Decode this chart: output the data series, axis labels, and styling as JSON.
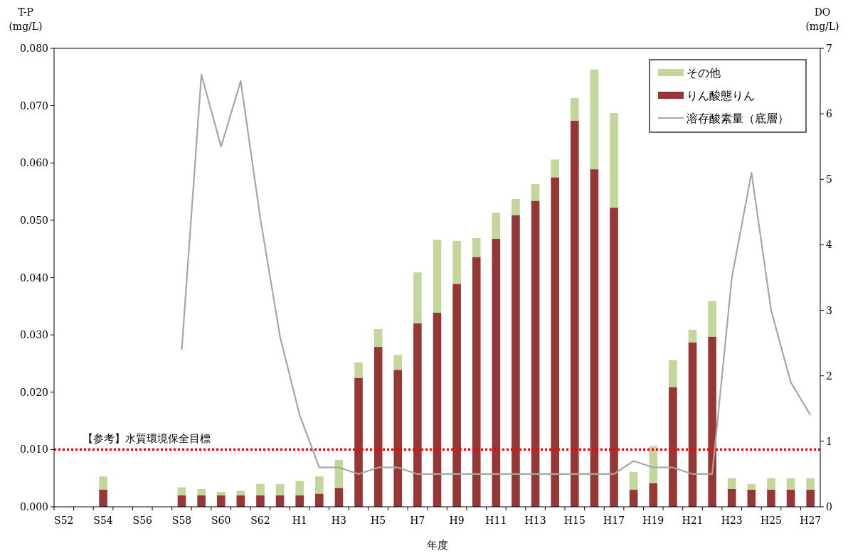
{
  "chart_data": {
    "type": "bar",
    "stacked": true,
    "xlabel": "年度",
    "ylabel": "T-P (mg/L)",
    "y2label": "DO (mg/L)",
    "categories": [
      "S52",
      null,
      "S54",
      null,
      "S56",
      null,
      "S58",
      null,
      "S60",
      null,
      "S62",
      null,
      "H1",
      null,
      "H3",
      null,
      "H5",
      null,
      "H7",
      null,
      "H9",
      null,
      "H11",
      null,
      "H13",
      null,
      "H15",
      null,
      "H17",
      null,
      "H19",
      null,
      "H21",
      null,
      "H23",
      null,
      "H25",
      null,
      "H27"
    ],
    "series": [
      {
        "name": "りん酸態りん",
        "color": "#953735",
        "values": [
          null,
          null,
          0.003,
          null,
          null,
          null,
          0.002,
          0.002,
          0.002,
          0.002,
          0.002,
          0.002,
          0.002,
          0.0023,
          0.0033,
          0.0225,
          0.0279,
          0.0239,
          0.032,
          0.0339,
          0.0389,
          0.0436,
          0.0468,
          0.0509,
          0.0534,
          0.0575,
          0.0674,
          0.0589,
          0.0522,
          0.003,
          0.0041,
          0.0209,
          0.0287,
          0.0297,
          0.0031,
          0.003,
          0.003,
          0.003,
          0.003
        ]
      },
      {
        "name": "その他",
        "color": "#c3d69b",
        "values": [
          null,
          null,
          0.0023,
          null,
          null,
          null,
          0.0014,
          0.0011,
          0.0006,
          0.0008,
          0.002,
          0.002,
          0.0025,
          0.003,
          0.0049,
          0.0027,
          0.0031,
          0.0026,
          0.0089,
          0.0127,
          0.0075,
          0.0033,
          0.0045,
          0.0028,
          0.0029,
          0.0031,
          0.0039,
          0.0174,
          0.0165,
          0.0031,
          0.0065,
          0.0047,
          0.0022,
          0.0062,
          0.0019,
          0.001,
          0.002,
          0.002,
          0.002
        ]
      },
      {
        "name": "溶存酸素量（底層）",
        "type": "line",
        "axis": "y2",
        "color": "#a6a6a6",
        "values": [
          null,
          null,
          null,
          null,
          null,
          null,
          2.4,
          6.6,
          5.5,
          6.5,
          4.4,
          2.6,
          1.4,
          0.6,
          0.6,
          0.5,
          0.6,
          0.6,
          0.5,
          0.5,
          0.5,
          0.5,
          0.5,
          0.5,
          0.5,
          0.5,
          0.5,
          0.5,
          0.5,
          0.7,
          0.6,
          0.6,
          0.5,
          0.5,
          3.5,
          5.1,
          3.0,
          1.9,
          1.4
        ]
      }
    ],
    "ylim": [
      0,
      0.08
    ],
    "yticks": [
      {
        "value": 0,
        "label": "0.000"
      },
      {
        "value": 0.01,
        "label": "0.010"
      },
      {
        "value": 0.02,
        "label": "0.020"
      },
      {
        "value": 0.03,
        "label": "0.030"
      },
      {
        "value": 0.04,
        "label": "0.040"
      },
      {
        "value": 0.05,
        "label": "0.050"
      },
      {
        "value": 0.06,
        "label": "0.060"
      },
      {
        "value": 0.07,
        "label": "0.070"
      },
      {
        "value": 0.08,
        "label": "0.080"
      }
    ],
    "y2lim": [
      0,
      7
    ],
    "y2ticks": [
      0,
      1,
      2,
      3,
      4,
      5,
      6,
      7
    ],
    "legend": "top right",
    "ref_lines": [
      {
        "axis": "y",
        "value": 0.01,
        "label": "【参考】水質環境保全目標",
        "color": "#ff0000",
        "line_style": "dotted"
      }
    ]
  }
}
